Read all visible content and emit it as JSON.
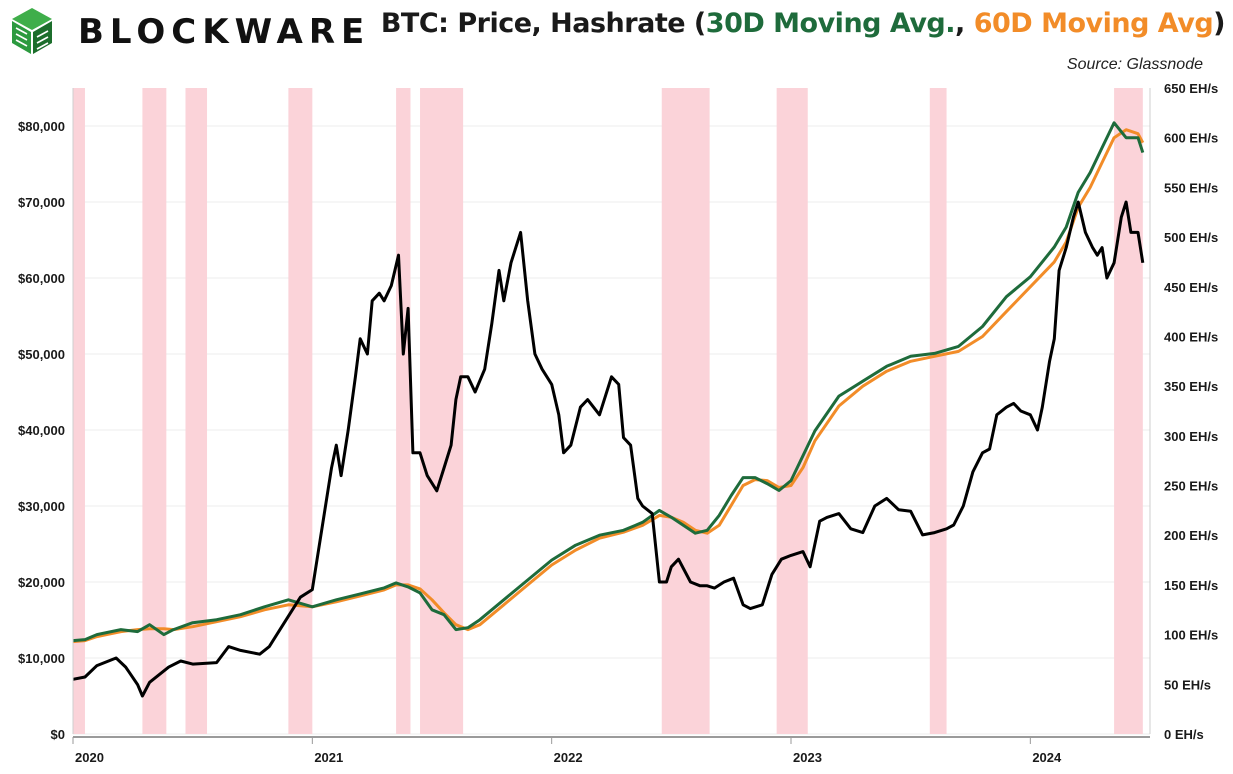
{
  "header": {
    "brand": "BLOCKWARE",
    "title_prefix": "BTC: Price, Hashrate (",
    "title_series1": "30D Moving Avg.",
    "title_sep": ", ",
    "title_series2": "60D Moving Avg",
    "title_suffix": ")",
    "source": "Source: Glassnode"
  },
  "colors": {
    "price": "#000000",
    "ma30": "#1e6b3b",
    "ma60": "#f28c28",
    "band": "#fbd3d9",
    "logo_green": "#2c9a3f",
    "logo_dark": "#1c6e2c"
  },
  "chart_data": {
    "type": "line",
    "title": "BTC: Price, Hashrate (30D Moving Avg., 60D Moving Avg)",
    "x_tick_labels": [
      "2020",
      "2021",
      "2022",
      "2023",
      "2024"
    ],
    "x_ticks": [
      2020.0,
      2021.0,
      2022.0,
      2023.0,
      2024.0
    ],
    "xlim": [
      2020.0,
      2024.5
    ],
    "y_left": {
      "label": "",
      "ylim": [
        0,
        85000
      ],
      "ticks": [
        0,
        10000,
        20000,
        30000,
        40000,
        50000,
        60000,
        70000,
        80000
      ],
      "tick_labels": [
        "$0",
        "$10,000",
        "$20,000",
        "$30,000",
        "$40,000",
        "$50,000",
        "$60,000",
        "$70,000",
        "$80,000"
      ]
    },
    "y_right": {
      "label": "",
      "ylim": [
        0,
        650
      ],
      "ticks": [
        0,
        50,
        100,
        150,
        200,
        250,
        300,
        350,
        400,
        450,
        500,
        550,
        600,
        650
      ],
      "tick_labels": [
        "0 EH/s",
        "50 EH/s",
        "100 EH/s",
        "150 EH/s",
        "200 EH/s",
        "250 EH/s",
        "300 EH/s",
        "350 EH/s",
        "400 EH/s",
        "450 EH/s",
        "500 EH/s",
        "550 EH/s",
        "600 EH/s",
        "650 EH/s"
      ]
    },
    "shaded_periods": [
      [
        2020.0,
        2020.05
      ],
      [
        2020.29,
        2020.39
      ],
      [
        2020.47,
        2020.56
      ],
      [
        2020.9,
        2021.0
      ],
      [
        2021.35,
        2021.41
      ],
      [
        2021.45,
        2021.63
      ],
      [
        2022.46,
        2022.66
      ],
      [
        2022.94,
        2023.07
      ],
      [
        2023.58,
        2023.65
      ],
      [
        2024.35,
        2024.47
      ]
    ],
    "series": [
      {
        "name": "BTC Price",
        "axis": "left",
        "x": [
          2020.0,
          2020.05,
          2020.1,
          2020.18,
          2020.22,
          2020.27,
          2020.29,
          2020.32,
          2020.4,
          2020.45,
          2020.5,
          2020.6,
          2020.65,
          2020.7,
          2020.78,
          2020.82,
          2020.86,
          2020.9,
          2020.95,
          2021.0,
          2021.02,
          2021.05,
          2021.08,
          2021.1,
          2021.12,
          2021.15,
          2021.18,
          2021.2,
          2021.23,
          2021.25,
          2021.28,
          2021.3,
          2021.33,
          2021.36,
          2021.38,
          2021.4,
          2021.42,
          2021.45,
          2021.48,
          2021.52,
          2021.55,
          2021.58,
          2021.6,
          2021.62,
          2021.65,
          2021.68,
          2021.72,
          2021.75,
          2021.78,
          2021.8,
          2021.83,
          2021.85,
          2021.87,
          2021.9,
          2021.93,
          2021.96,
          2022.0,
          2022.03,
          2022.05,
          2022.08,
          2022.12,
          2022.15,
          2022.2,
          2022.25,
          2022.28,
          2022.3,
          2022.33,
          2022.36,
          2022.38,
          2022.42,
          2022.45,
          2022.48,
          2022.5,
          2022.53,
          2022.58,
          2022.62,
          2022.65,
          2022.68,
          2022.72,
          2022.76,
          2022.8,
          2022.83,
          2022.86,
          2022.88,
          2022.92,
          2022.96,
          2023.0,
          2023.05,
          2023.08,
          2023.12,
          2023.15,
          2023.2,
          2023.25,
          2023.3,
          2023.35,
          2023.4,
          2023.45,
          2023.5,
          2023.55,
          2023.6,
          2023.65,
          2023.68,
          2023.72,
          2023.76,
          2023.8,
          2023.83,
          2023.86,
          2023.9,
          2023.93,
          2023.96,
          2024.0,
          2024.03,
          2024.05,
          2024.08,
          2024.1,
          2024.12,
          2024.15,
          2024.18,
          2024.2,
          2024.23,
          2024.26,
          2024.28,
          2024.3,
          2024.32,
          2024.35,
          2024.38,
          2024.4,
          2024.42,
          2024.45,
          2024.47
        ],
        "values": [
          7200,
          7500,
          9000,
          10000,
          8800,
          6500,
          5000,
          6800,
          8800,
          9600,
          9200,
          9400,
          11500,
          11000,
          10500,
          11500,
          13500,
          15500,
          18000,
          19000,
          23000,
          29000,
          35000,
          38000,
          34000,
          40000,
          47000,
          52000,
          50000,
          57000,
          58000,
          57000,
          59000,
          63000,
          50000,
          56000,
          37000,
          37000,
          34000,
          32000,
          35000,
          38000,
          44000,
          47000,
          47000,
          45000,
          48000,
          54000,
          61000,
          57000,
          62000,
          64000,
          66000,
          57000,
          50000,
          48000,
          46000,
          42000,
          37000,
          38000,
          43000,
          44000,
          42000,
          47000,
          46000,
          39000,
          38000,
          31000,
          30000,
          29000,
          20000,
          20000,
          22000,
          23000,
          20000,
          19500,
          19500,
          19200,
          20000,
          20500,
          17000,
          16500,
          16800,
          17000,
          21000,
          23000,
          23500,
          24000,
          22000,
          28000,
          28500,
          29000,
          27000,
          26500,
          30000,
          31000,
          29500,
          29300,
          26200,
          26500,
          27000,
          27500,
          30000,
          34500,
          37000,
          37500,
          42000,
          43000,
          43500,
          42500,
          42000,
          40000,
          43000,
          49000,
          52000,
          61000,
          64000,
          68000,
          70000,
          66000,
          64000,
          63000,
          64000,
          60000,
          62000,
          68000,
          70000,
          66000,
          66000,
          62000
        ]
      },
      {
        "name": "30D Moving Avg.",
        "axis": "right",
        "x": [
          2020.0,
          2020.05,
          2020.1,
          2020.2,
          2020.27,
          2020.32,
          2020.38,
          2020.42,
          2020.5,
          2020.6,
          2020.7,
          2020.8,
          2020.9,
          2021.0,
          2021.1,
          2021.2,
          2021.3,
          2021.35,
          2021.4,
          2021.45,
          2021.5,
          2021.55,
          2021.6,
          2021.65,
          2021.7,
          2021.8,
          2021.9,
          2022.0,
          2022.1,
          2022.2,
          2022.3,
          2022.38,
          2022.45,
          2022.5,
          2022.55,
          2022.6,
          2022.65,
          2022.7,
          2022.75,
          2022.8,
          2022.85,
          2022.9,
          2022.95,
          2023.0,
          2023.05,
          2023.1,
          2023.2,
          2023.3,
          2023.4,
          2023.5,
          2023.6,
          2023.7,
          2023.8,
          2023.9,
          2024.0,
          2024.1,
          2024.15,
          2024.2,
          2024.25,
          2024.3,
          2024.35,
          2024.4,
          2024.45,
          2024.47
        ],
        "values": [
          94,
          95,
          100,
          105,
          103,
          110,
          100,
          105,
          112,
          115,
          120,
          128,
          135,
          128,
          135,
          141,
          147,
          152,
          148,
          142,
          125,
          120,
          105,
          107,
          115,
          135,
          155,
          175,
          190,
          200,
          205,
          213,
          225,
          218,
          210,
          202,
          205,
          220,
          240,
          258,
          258,
          252,
          245,
          255,
          280,
          305,
          340,
          355,
          370,
          380,
          383,
          390,
          410,
          440,
          460,
          490,
          510,
          545,
          565,
          590,
          615,
          600,
          600,
          585
        ]
      },
      {
        "name": "60D Moving Avg",
        "axis": "right",
        "x": [
          2020.0,
          2020.05,
          2020.1,
          2020.2,
          2020.27,
          2020.32,
          2020.38,
          2020.42,
          2020.5,
          2020.6,
          2020.7,
          2020.8,
          2020.9,
          2021.0,
          2021.1,
          2021.2,
          2021.3,
          2021.35,
          2021.4,
          2021.45,
          2021.5,
          2021.55,
          2021.6,
          2021.65,
          2021.7,
          2021.8,
          2021.9,
          2022.0,
          2022.1,
          2022.2,
          2022.3,
          2022.38,
          2022.45,
          2022.5,
          2022.55,
          2022.6,
          2022.65,
          2022.7,
          2022.75,
          2022.8,
          2022.85,
          2022.9,
          2022.95,
          2023.0,
          2023.05,
          2023.1,
          2023.2,
          2023.3,
          2023.4,
          2023.5,
          2023.6,
          2023.7,
          2023.8,
          2023.9,
          2024.0,
          2024.1,
          2024.15,
          2024.2,
          2024.25,
          2024.3,
          2024.35,
          2024.4,
          2024.45,
          2024.47
        ],
        "values": [
          93,
          94,
          98,
          103,
          105,
          106,
          106,
          105,
          108,
          113,
          118,
          125,
          130,
          128,
          133,
          139,
          145,
          150,
          150,
          146,
          135,
          122,
          110,
          105,
          110,
          130,
          150,
          170,
          185,
          197,
          203,
          210,
          220,
          218,
          213,
          205,
          202,
          210,
          230,
          250,
          256,
          255,
          248,
          250,
          268,
          295,
          330,
          350,
          365,
          375,
          380,
          385,
          400,
          425,
          450,
          475,
          495,
          530,
          550,
          575,
          600,
          608,
          604,
          595
        ]
      }
    ]
  }
}
